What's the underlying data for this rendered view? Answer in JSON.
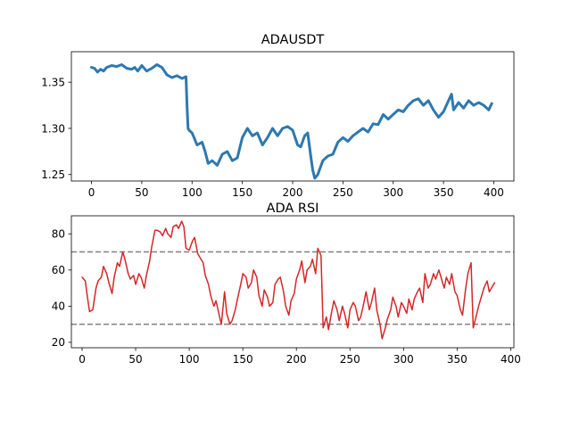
{
  "chart_data": [
    {
      "type": "line",
      "title": "ADAUSDT",
      "xlabel": "",
      "ylabel": "",
      "xlim": [
        -20,
        420
      ],
      "ylim": [
        1.243,
        1.383
      ],
      "xticks": [
        0,
        50,
        100,
        150,
        200,
        250,
        300,
        350,
        400
      ],
      "yticks": [
        1.25,
        1.3,
        1.35
      ],
      "ytick_decimals": 2,
      "grid": false,
      "series": [
        {
          "color": "#2e78b0",
          "line_width": 3,
          "x": [
            0,
            3,
            6,
            9,
            12,
            15,
            20,
            25,
            30,
            35,
            40,
            43,
            46,
            50,
            55,
            60,
            65,
            70,
            75,
            80,
            85,
            90,
            94,
            95,
            96,
            97,
            100,
            105,
            110,
            113,
            116,
            120,
            125,
            130,
            135,
            140,
            145,
            150,
            155,
            160,
            165,
            170,
            175,
            180,
            185,
            190,
            195,
            200,
            205,
            208,
            212,
            215,
            218,
            220,
            222,
            225,
            230,
            235,
            240,
            245,
            250,
            255,
            260,
            265,
            270,
            275,
            280,
            285,
            290,
            295,
            300,
            305,
            310,
            315,
            320,
            325,
            330,
            335,
            340,
            345,
            350,
            355,
            358,
            360,
            365,
            370,
            375,
            380,
            385,
            390,
            395,
            398
          ],
          "y": [
            1.366,
            1.365,
            1.361,
            1.364,
            1.362,
            1.366,
            1.368,
            1.367,
            1.369,
            1.365,
            1.364,
            1.366,
            1.362,
            1.368,
            1.362,
            1.365,
            1.369,
            1.366,
            1.358,
            1.355,
            1.357,
            1.354,
            1.356,
            1.325,
            1.3,
            1.298,
            1.295,
            1.282,
            1.285,
            1.275,
            1.262,
            1.265,
            1.26,
            1.272,
            1.275,
            1.265,
            1.268,
            1.29,
            1.3,
            1.292,
            1.295,
            1.282,
            1.29,
            1.3,
            1.292,
            1.3,
            1.302,
            1.298,
            1.282,
            1.28,
            1.292,
            1.295,
            1.27,
            1.255,
            1.246,
            1.25,
            1.265,
            1.27,
            1.272,
            1.285,
            1.29,
            1.286,
            1.292,
            1.296,
            1.3,
            1.296,
            1.305,
            1.304,
            1.315,
            1.31,
            1.315,
            1.32,
            1.318,
            1.325,
            1.33,
            1.332,
            1.325,
            1.33,
            1.32,
            1.312,
            1.318,
            1.33,
            1.337,
            1.32,
            1.328,
            1.322,
            1.33,
            1.325,
            1.328,
            1.325,
            1.32,
            1.327
          ]
        }
      ]
    },
    {
      "type": "line",
      "title": "ADA RSI",
      "xlabel": "",
      "ylabel": "",
      "xlim": [
        -10,
        403
      ],
      "ylim": [
        17,
        90
      ],
      "xticks": [
        0,
        50,
        100,
        150,
        200,
        250,
        300,
        350,
        400
      ],
      "yticks": [
        20,
        40,
        60,
        80
      ],
      "ytick_decimals": 0,
      "grid": false,
      "reference_lines": [
        70,
        30
      ],
      "series": [
        {
          "color": "#d62728",
          "line_width": 1.5,
          "x": [
            0,
            3,
            5,
            7,
            10,
            13,
            15,
            18,
            20,
            23,
            25,
            28,
            30,
            33,
            35,
            38,
            40,
            43,
            45,
            48,
            50,
            53,
            55,
            58,
            60,
            63,
            65,
            68,
            70,
            73,
            75,
            78,
            80,
            83,
            85,
            88,
            90,
            93,
            95,
            97,
            100,
            103,
            105,
            108,
            110,
            113,
            115,
            118,
            120,
            123,
            125,
            128,
            130,
            133,
            135,
            138,
            140,
            143,
            145,
            148,
            150,
            153,
            155,
            158,
            160,
            163,
            165,
            168,
            170,
            173,
            175,
            178,
            180,
            183,
            185,
            188,
            190,
            193,
            195,
            198,
            200,
            203,
            205,
            208,
            210,
            213,
            215,
            218,
            220,
            223,
            225,
            228,
            230,
            233,
            235,
            238,
            240,
            243,
            245,
            248,
            250,
            253,
            255,
            258,
            260,
            263,
            265,
            268,
            270,
            273,
            275,
            278,
            280,
            283,
            285,
            288,
            290,
            293,
            295,
            298,
            300,
            303,
            305,
            308,
            310,
            313,
            315,
            318,
            320,
            323,
            325,
            328,
            330,
            333,
            335,
            338,
            340,
            343,
            345,
            348,
            350,
            353,
            355,
            358,
            360,
            363,
            365,
            368,
            370,
            373,
            375,
            378,
            380,
            383,
            385
          ],
          "y": [
            56,
            54,
            45,
            37,
            38,
            50,
            54,
            56,
            62,
            58,
            53,
            47,
            56,
            64,
            62,
            70,
            66,
            58,
            55,
            57,
            52,
            58,
            56,
            50,
            57,
            65,
            73,
            82,
            82,
            81,
            79,
            83,
            80,
            78,
            84,
            85,
            83,
            87,
            84,
            72,
            71,
            76,
            78,
            69,
            67,
            64,
            57,
            52,
            46,
            40,
            43,
            35,
            30,
            48,
            36,
            30,
            32,
            38,
            44,
            52,
            58,
            56,
            50,
            53,
            60,
            56,
            46,
            40,
            49,
            45,
            40,
            42,
            52,
            55,
            56,
            48,
            40,
            35,
            43,
            47,
            55,
            60,
            65,
            53,
            60,
            62,
            66,
            58,
            72,
            68,
            28,
            34,
            27,
            37,
            43,
            38,
            32,
            40,
            36,
            28,
            38,
            42,
            40,
            32,
            34,
            42,
            48,
            38,
            42,
            50,
            38,
            30,
            22,
            28,
            33,
            38,
            45,
            40,
            34,
            42,
            40,
            36,
            44,
            38,
            44,
            48,
            50,
            42,
            58,
            50,
            52,
            58,
            55,
            60,
            56,
            50,
            56,
            52,
            58,
            48,
            46,
            38,
            35,
            50,
            58,
            64,
            28,
            35,
            40,
            46,
            50,
            54,
            48,
            51,
            53
          ]
        }
      ]
    }
  ]
}
